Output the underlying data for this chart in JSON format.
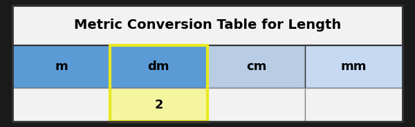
{
  "title": "Metric Conversion Table for Length",
  "columns": [
    "m",
    "dm",
    "cm",
    "mm"
  ],
  "data_value": "2",
  "data_col_index": 1,
  "header_colors": [
    "#5b9bd5",
    "#5b9bd5",
    "#b8cce4",
    "#c5d9f1"
  ],
  "data_row_colors": [
    "#f2f2f2",
    "#f5f5a0",
    "#f2f2f2",
    "#f2f2f2"
  ],
  "title_bg": "#f2f2f2",
  "highlight_border_color": "#e8e820",
  "table_border_color": "#333333",
  "cell_border_color": "#888888",
  "outer_bg": "#1a1a1a",
  "title_fontsize": 14,
  "header_fontsize": 13,
  "data_fontsize": 13,
  "figsize": [
    6.0,
    1.85
  ],
  "dpi": 100
}
